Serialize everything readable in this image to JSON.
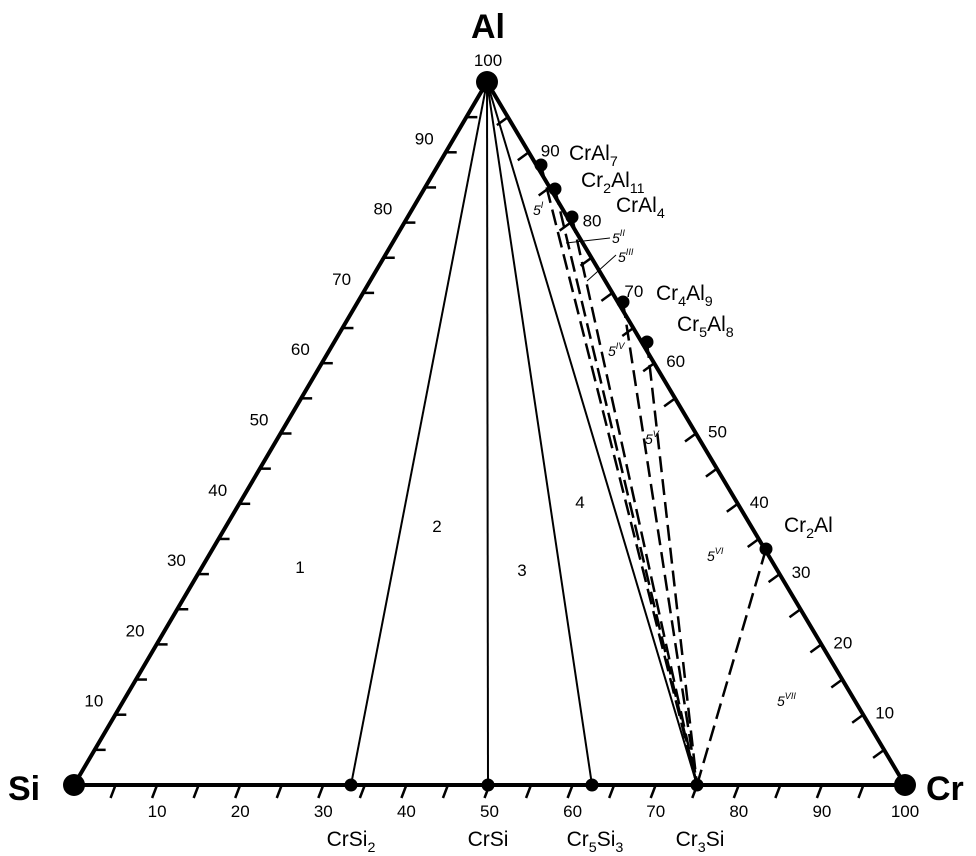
{
  "vertices": {
    "top": "Al",
    "left": "Si",
    "right": "Cr"
  },
  "apex_value": "100",
  "left_edge_ticks": [
    "10",
    "20",
    "30",
    "40",
    "50",
    "60",
    "70",
    "80",
    "90"
  ],
  "right_edge_ticks": [
    "10",
    "20",
    "30",
    "40",
    "50",
    "60",
    "70",
    "80",
    "90"
  ],
  "bottom_ticks": [
    "10",
    "20",
    "30",
    "40",
    "50",
    "60",
    "70",
    "80",
    "90",
    "100"
  ],
  "bottom_compounds": [
    {
      "base": "CrSi",
      "sub": "2",
      "x_pct": 33.3
    },
    {
      "base": "CrSi",
      "sub": "",
      "x_pct": 50
    },
    {
      "base": "Cr5Si3",
      "parts": [
        [
          "Cr",
          ""
        ],
        [
          "5",
          "sub"
        ],
        [
          "Si",
          ""
        ],
        [
          "3",
          "sub"
        ]
      ],
      "x_pct": 62.5
    },
    {
      "base": "Cr3Si",
      "parts": [
        [
          "Cr",
          ""
        ],
        [
          "3",
          "sub"
        ],
        [
          "Si",
          ""
        ]
      ],
      "x_pct": 75
    }
  ],
  "edge_compounds": [
    {
      "name": "CrAl7",
      "al_pct": 87.5,
      "parts": [
        [
          "CrAl",
          ""
        ],
        [
          "7",
          "sub"
        ]
      ]
    },
    {
      "name": "Cr2Al11",
      "al_pct": 84.6,
      "parts": [
        [
          "Cr",
          ""
        ],
        [
          "2",
          "sub"
        ],
        [
          "Al",
          ""
        ],
        [
          "11",
          "sub"
        ]
      ]
    },
    {
      "name": "CrAl4",
      "al_pct": 80,
      "parts": [
        [
          "CrAl",
          ""
        ],
        [
          "4",
          "sub"
        ]
      ]
    },
    {
      "name": "Cr4Al9",
      "al_pct": 69.2,
      "parts": [
        [
          "Cr",
          ""
        ],
        [
          "4",
          "sub"
        ],
        [
          "Al",
          ""
        ],
        [
          "9",
          "sub"
        ]
      ]
    },
    {
      "name": "Cr5Al8",
      "al_pct": 61.5,
      "parts": [
        [
          "Cr",
          ""
        ],
        [
          "5",
          "sub"
        ],
        [
          "Al",
          ""
        ],
        [
          "8",
          "sub"
        ]
      ]
    },
    {
      "name": "Cr2Al",
      "al_pct": 33.3,
      "parts": [
        [
          "Cr",
          ""
        ],
        [
          "2",
          "sub"
        ],
        [
          "Al",
          ""
        ]
      ]
    }
  ],
  "regions": [
    "1",
    "2",
    "3",
    "4"
  ],
  "sub_regions": [
    {
      "base": "5",
      "sup": "I"
    },
    {
      "base": "5",
      "sup": "II"
    },
    {
      "base": "5",
      "sup": "III"
    },
    {
      "base": "5",
      "sup": "IV"
    },
    {
      "base": "5",
      "sup": "V"
    },
    {
      "base": "5",
      "sup": "VI"
    },
    {
      "base": "5",
      "sup": "VII"
    }
  ]
}
